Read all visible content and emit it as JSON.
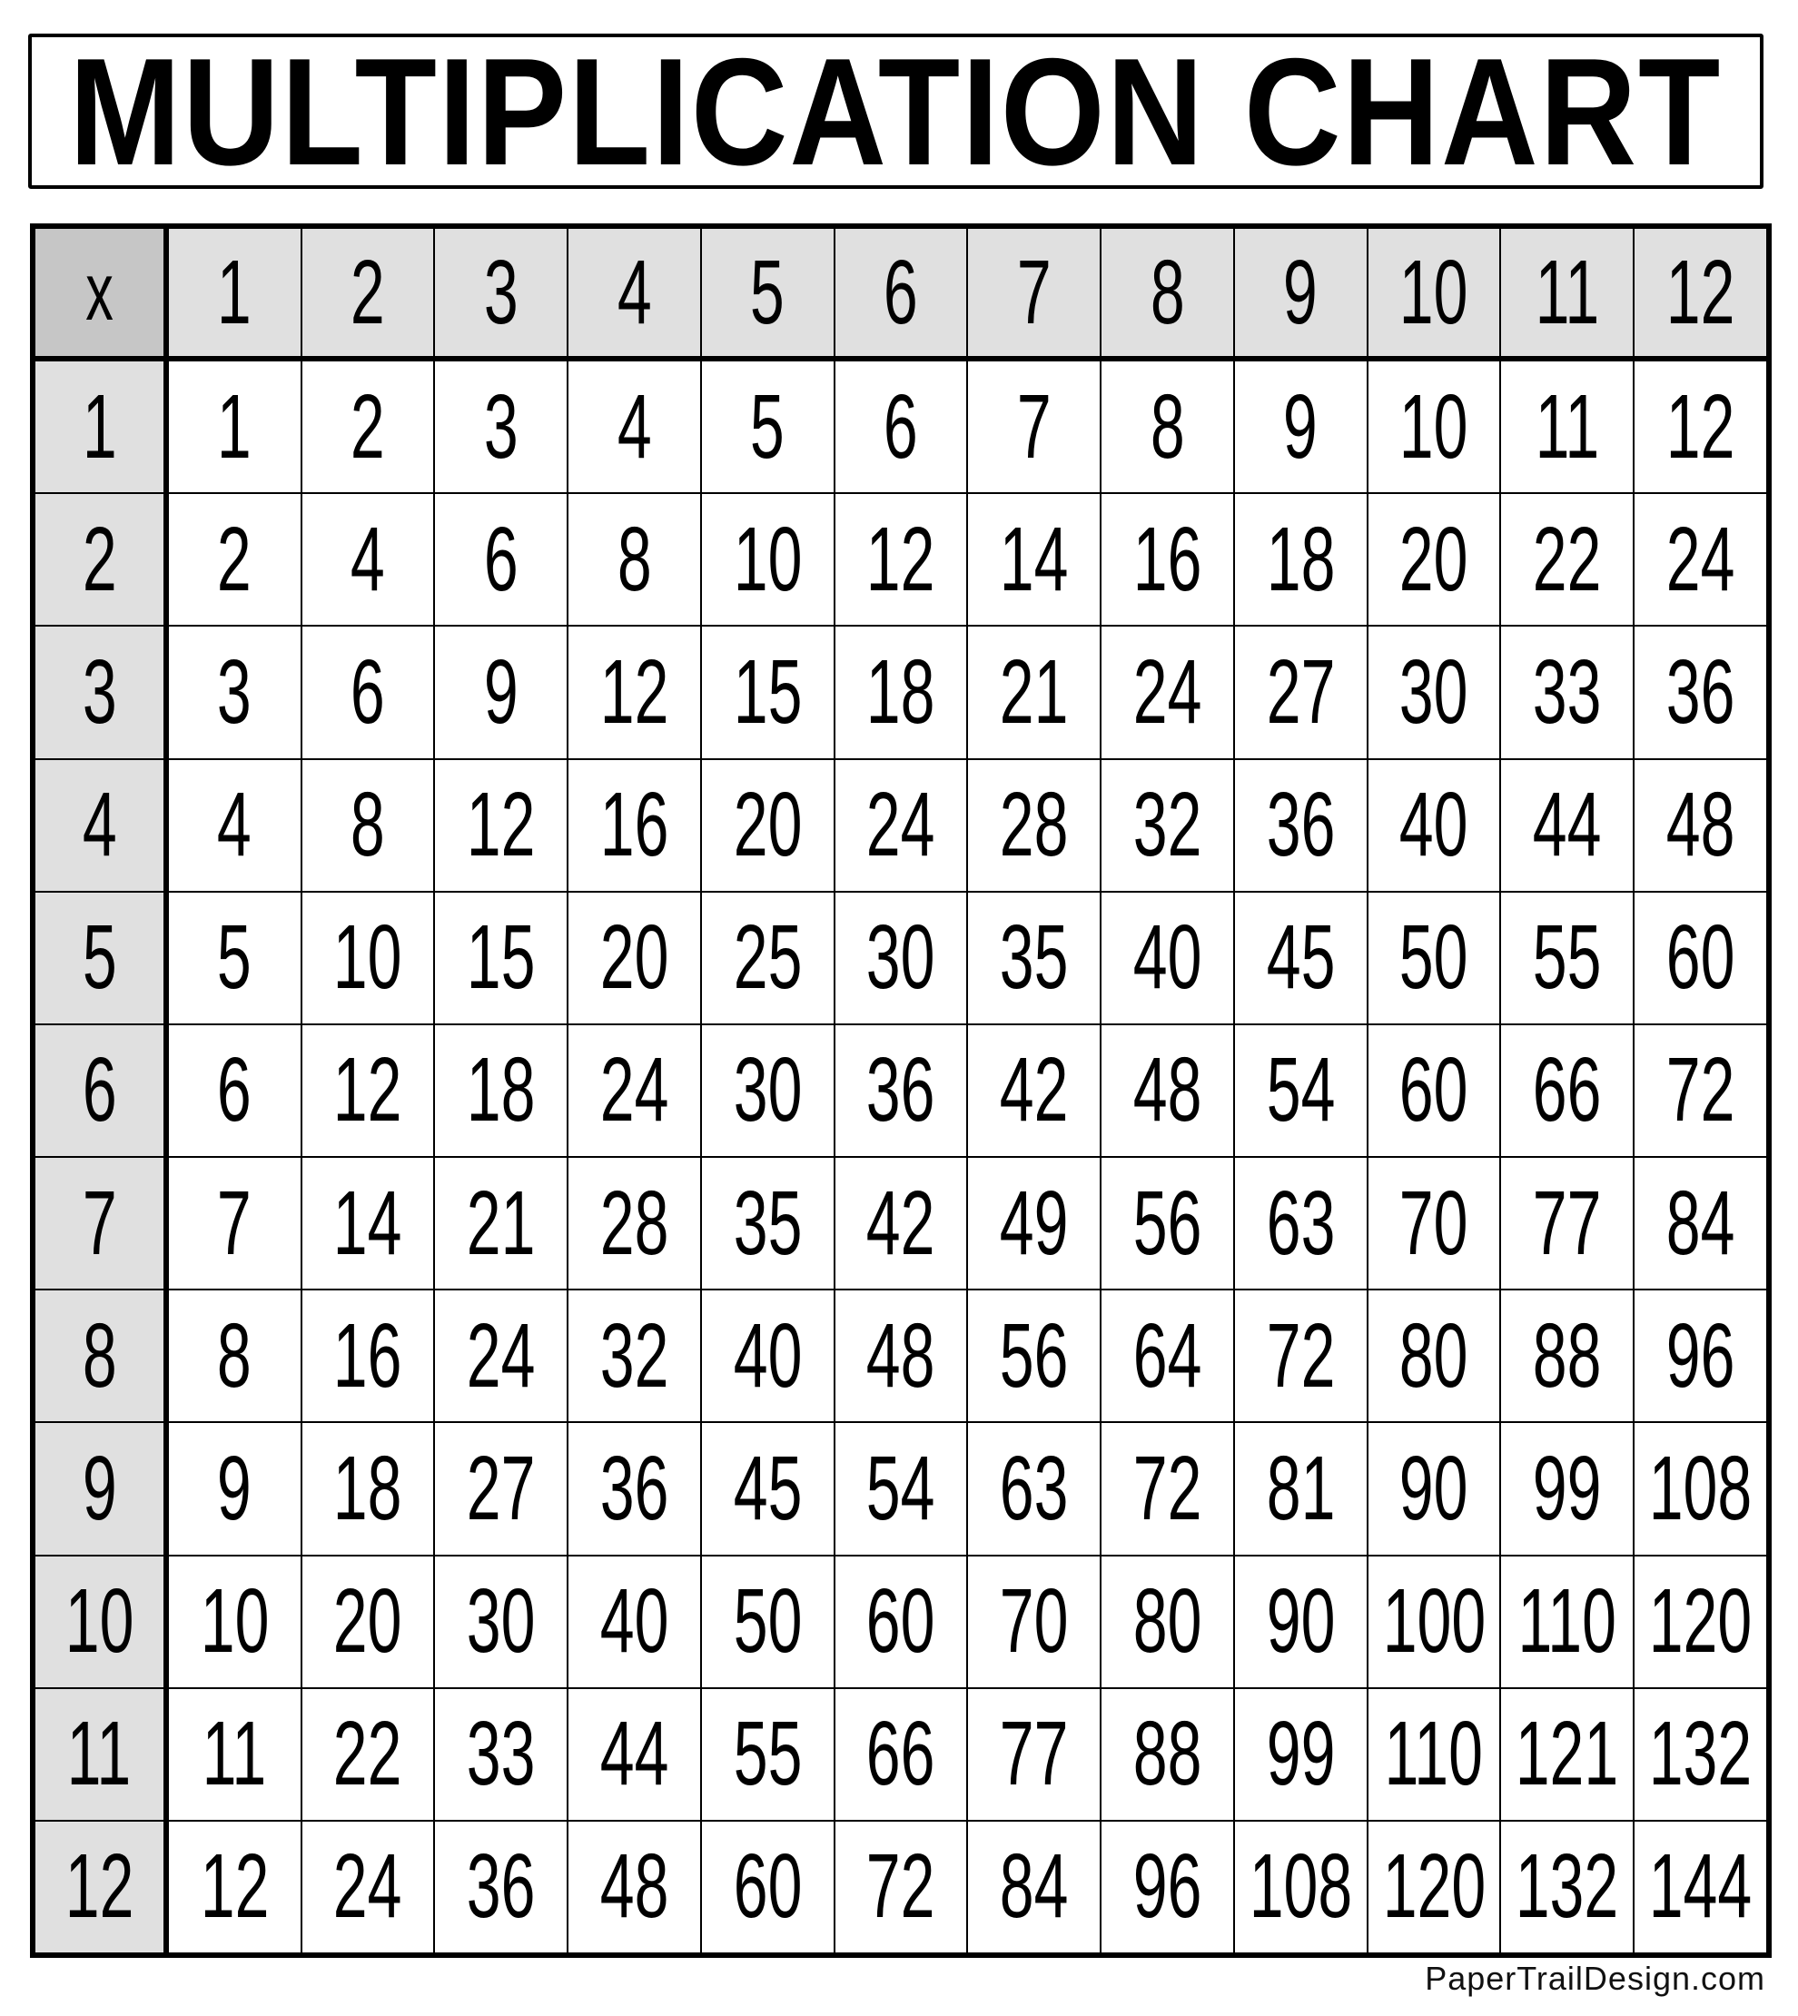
{
  "title": "MULTIPLICATION CHART",
  "corner_label": "x",
  "column_headers": [
    "1",
    "2",
    "3",
    "4",
    "5",
    "6",
    "7",
    "8",
    "9",
    "10",
    "11",
    "12"
  ],
  "rows": [
    {
      "header": "1",
      "values": [
        "1",
        "2",
        "3",
        "4",
        "5",
        "6",
        "7",
        "8",
        "9",
        "10",
        "11",
        "12"
      ]
    },
    {
      "header": "2",
      "values": [
        "2",
        "4",
        "6",
        "8",
        "10",
        "12",
        "14",
        "16",
        "18",
        "20",
        "22",
        "24"
      ]
    },
    {
      "header": "3",
      "values": [
        "3",
        "6",
        "9",
        "12",
        "15",
        "18",
        "21",
        "24",
        "27",
        "30",
        "33",
        "36"
      ]
    },
    {
      "header": "4",
      "values": [
        "4",
        "8",
        "12",
        "16",
        "20",
        "24",
        "28",
        "32",
        "36",
        "40",
        "44",
        "48"
      ]
    },
    {
      "header": "5",
      "values": [
        "5",
        "10",
        "15",
        "20",
        "25",
        "30",
        "35",
        "40",
        "45",
        "50",
        "55",
        "60"
      ]
    },
    {
      "header": "6",
      "values": [
        "6",
        "12",
        "18",
        "24",
        "30",
        "36",
        "42",
        "48",
        "54",
        "60",
        "66",
        "72"
      ]
    },
    {
      "header": "7",
      "values": [
        "7",
        "14",
        "21",
        "28",
        "35",
        "42",
        "49",
        "56",
        "63",
        "70",
        "77",
        "84"
      ]
    },
    {
      "header": "8",
      "values": [
        "8",
        "16",
        "24",
        "32",
        "40",
        "48",
        "56",
        "64",
        "72",
        "80",
        "88",
        "96"
      ]
    },
    {
      "header": "9",
      "values": [
        "9",
        "18",
        "27",
        "36",
        "45",
        "54",
        "63",
        "72",
        "81",
        "90",
        "99",
        "108"
      ]
    },
    {
      "header": "10",
      "values": [
        "10",
        "20",
        "30",
        "40",
        "50",
        "60",
        "70",
        "80",
        "90",
        "100",
        "110",
        "120"
      ]
    },
    {
      "header": "11",
      "values": [
        "11",
        "22",
        "33",
        "44",
        "55",
        "66",
        "77",
        "88",
        "99",
        "110",
        "121",
        "132"
      ]
    },
    {
      "header": "12",
      "values": [
        "12",
        "24",
        "36",
        "48",
        "60",
        "72",
        "84",
        "96",
        "108",
        "120",
        "132",
        "144"
      ]
    }
  ],
  "footer": "PaperTrailDesign.com",
  "colors": {
    "header_fill": "#e0e0e0",
    "corner_fill": "#c6c6c6",
    "lines": "#000000"
  }
}
